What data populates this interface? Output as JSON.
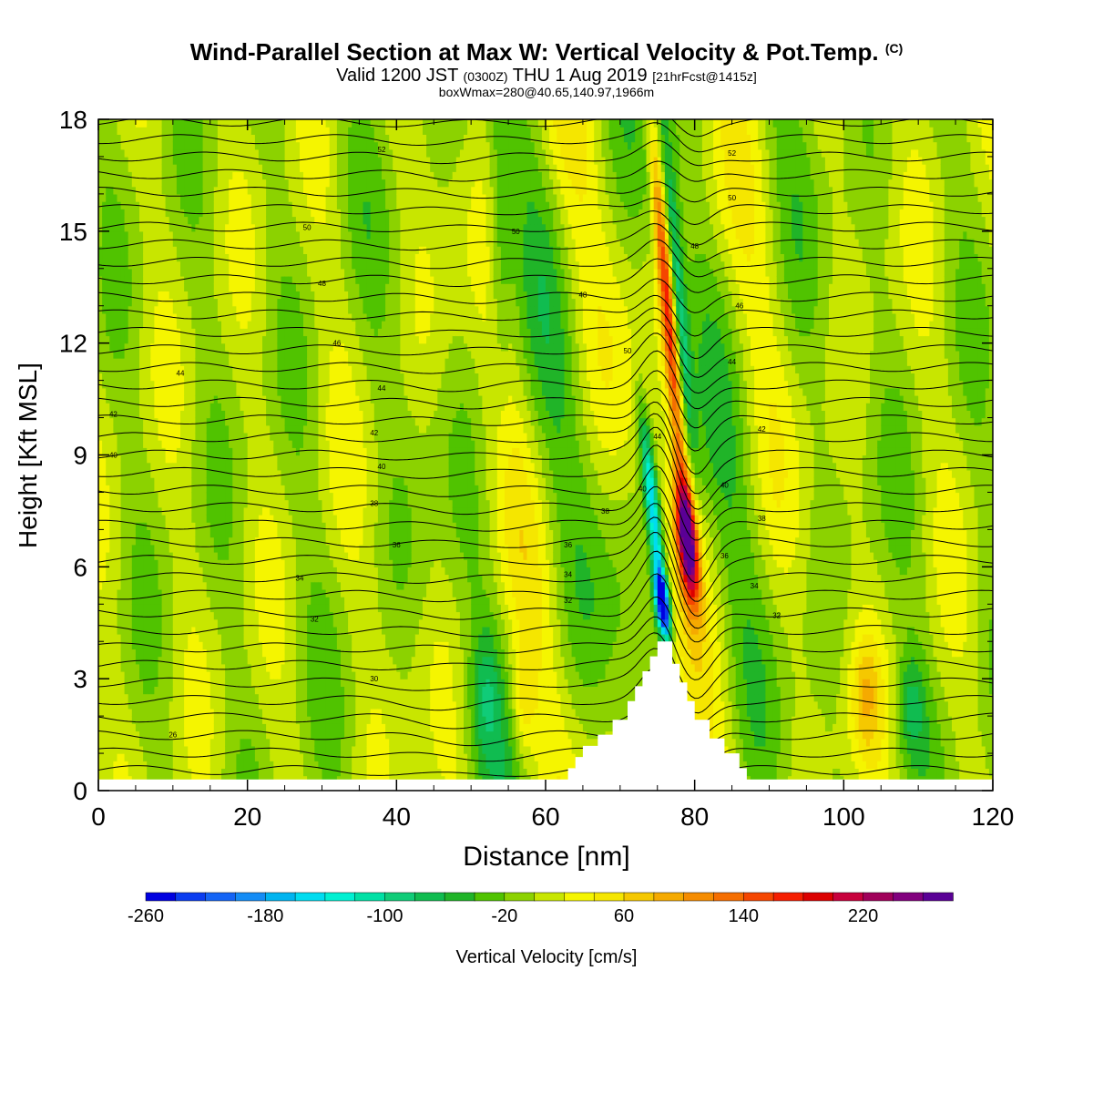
{
  "title": {
    "main": "Wind-Parallel Section at Max W: Vertical Velocity & Pot.Temp.",
    "main_mark": "(C)",
    "valid_prefix": "Valid 1200 JST",
    "valid_utc": "(0300Z)",
    "valid_date": "THU 1 Aug 2019",
    "fcst": "[21hrFcst@1415z]",
    "boxwmax": "boxWmax=280@40.65,140.97,1966m"
  },
  "chart_data": {
    "type": "heatmap",
    "xlabel": "Distance [nm]",
    "ylabel": "Height [Kft MSL]",
    "xlim": [
      0,
      120
    ],
    "ylim": [
      0,
      18
    ],
    "x_ticks": [
      "0",
      "20",
      "40",
      "60",
      "80",
      "100",
      "120"
    ],
    "y_ticks": [
      "0",
      "3",
      "6",
      "9",
      "12",
      "15",
      "18"
    ],
    "colorbar": {
      "label": "Vertical Velocity [cm/s]",
      "min": -260,
      "max": 260,
      "step": 20,
      "tick_labels": [
        "-260",
        "-180",
        "-100",
        "-20",
        "60",
        "140",
        "220"
      ],
      "colors": [
        "#0000e0",
        "#0a3cf0",
        "#1464f5",
        "#148cf5",
        "#00b4f0",
        "#00dcf0",
        "#00f0d2",
        "#00e0a5",
        "#10cc78",
        "#10bc50",
        "#20b428",
        "#50c300",
        "#8cd200",
        "#c8e600",
        "#f5f500",
        "#f5e600",
        "#f5c800",
        "#f5aa00",
        "#f58c00",
        "#f56e00",
        "#f54600",
        "#f51e00",
        "#dc0000",
        "#c8003c",
        "#a0005a",
        "#82007e",
        "#5a0096"
      ]
    },
    "terrain_kft": {
      "x": [
        0,
        62,
        63,
        64,
        65,
        67,
        69,
        71,
        72,
        73,
        74,
        75,
        76,
        77,
        78,
        79,
        80,
        82,
        84,
        86,
        87,
        88,
        120
      ],
      "top": [
        0.3,
        0.3,
        0.6,
        0.9,
        1.2,
        1.5,
        1.9,
        2.4,
        2.8,
        3.2,
        3.6,
        4.0,
        4.0,
        3.4,
        2.9,
        2.4,
        1.9,
        1.4,
        1.0,
        0.6,
        0.3,
        0.3,
        0.3
      ]
    },
    "w_features": [
      {
        "kind": "updraft",
        "x": 79,
        "y": 6.8,
        "max_cm_s": 280
      },
      {
        "kind": "updraft",
        "x": 77,
        "y": 13,
        "max_cm_s": 180
      },
      {
        "kind": "downdraft",
        "x": 75.5,
        "y": 5.0,
        "min_cm_s": -260
      },
      {
        "kind": "downdraft",
        "x": 78.5,
        "y": 13,
        "min_cm_s": -100
      },
      {
        "kind": "weak_updraft",
        "x": 103,
        "y": 2.5,
        "max_cm_s": 60
      },
      {
        "kind": "weak_updraft",
        "x": 57,
        "y": 2.5,
        "max_cm_s": 50
      }
    ],
    "theta_contours": {
      "count": 38,
      "unit": "C",
      "labels": [
        {
          "text": "26",
          "x": 10,
          "y": 1.5
        },
        {
          "text": "30",
          "x": 37,
          "y": 3.0
        },
        {
          "text": "32",
          "x": 29,
          "y": 4.6
        },
        {
          "text": "34",
          "x": 27,
          "y": 5.7
        },
        {
          "text": "36",
          "x": 40,
          "y": 6.6
        },
        {
          "text": "38",
          "x": 37,
          "y": 7.7
        },
        {
          "text": "40",
          "x": 38,
          "y": 8.7
        },
        {
          "text": "42",
          "x": 37,
          "y": 9.6
        },
        {
          "text": "44",
          "x": 38,
          "y": 10.8
        },
        {
          "text": "46",
          "x": 32,
          "y": 12.0
        },
        {
          "text": "48",
          "x": 30,
          "y": 13.6
        },
        {
          "text": "50",
          "x": 28,
          "y": 15.1
        },
        {
          "text": "52",
          "x": 38,
          "y": 17.2
        },
        {
          "text": "32",
          "x": 63,
          "y": 5.1
        },
        {
          "text": "34",
          "x": 63,
          "y": 5.8
        },
        {
          "text": "36",
          "x": 63,
          "y": 6.6
        },
        {
          "text": "38",
          "x": 68,
          "y": 7.5
        },
        {
          "text": "40",
          "x": 73,
          "y": 8.1
        },
        {
          "text": "44",
          "x": 75,
          "y": 9.5
        },
        {
          "text": "50",
          "x": 71,
          "y": 11.8
        },
        {
          "text": "48",
          "x": 65,
          "y": 13.3
        },
        {
          "text": "50",
          "x": 56,
          "y": 15.0
        },
        {
          "text": "32",
          "x": 91,
          "y": 4.7
        },
        {
          "text": "34",
          "x": 88,
          "y": 5.5
        },
        {
          "text": "36",
          "x": 84,
          "y": 6.3
        },
        {
          "text": "38",
          "x": 89,
          "y": 7.3
        },
        {
          "text": "40",
          "x": 84,
          "y": 8.2
        },
        {
          "text": "42",
          "x": 89,
          "y": 9.7
        },
        {
          "text": "44",
          "x": 85,
          "y": 11.5
        },
        {
          "text": "46",
          "x": 86,
          "y": 13.0
        },
        {
          "text": "48",
          "x": 80,
          "y": 14.6
        },
        {
          "text": "50",
          "x": 85,
          "y": 15.9
        },
        {
          "text": "52",
          "x": 85,
          "y": 17.1
        },
        {
          "text": "42",
          "x": 2,
          "y": 10.1
        },
        {
          "text": "40",
          "x": 2,
          "y": 9.0
        },
        {
          "text": "44",
          "x": 11,
          "y": 11.2
        }
      ]
    }
  }
}
